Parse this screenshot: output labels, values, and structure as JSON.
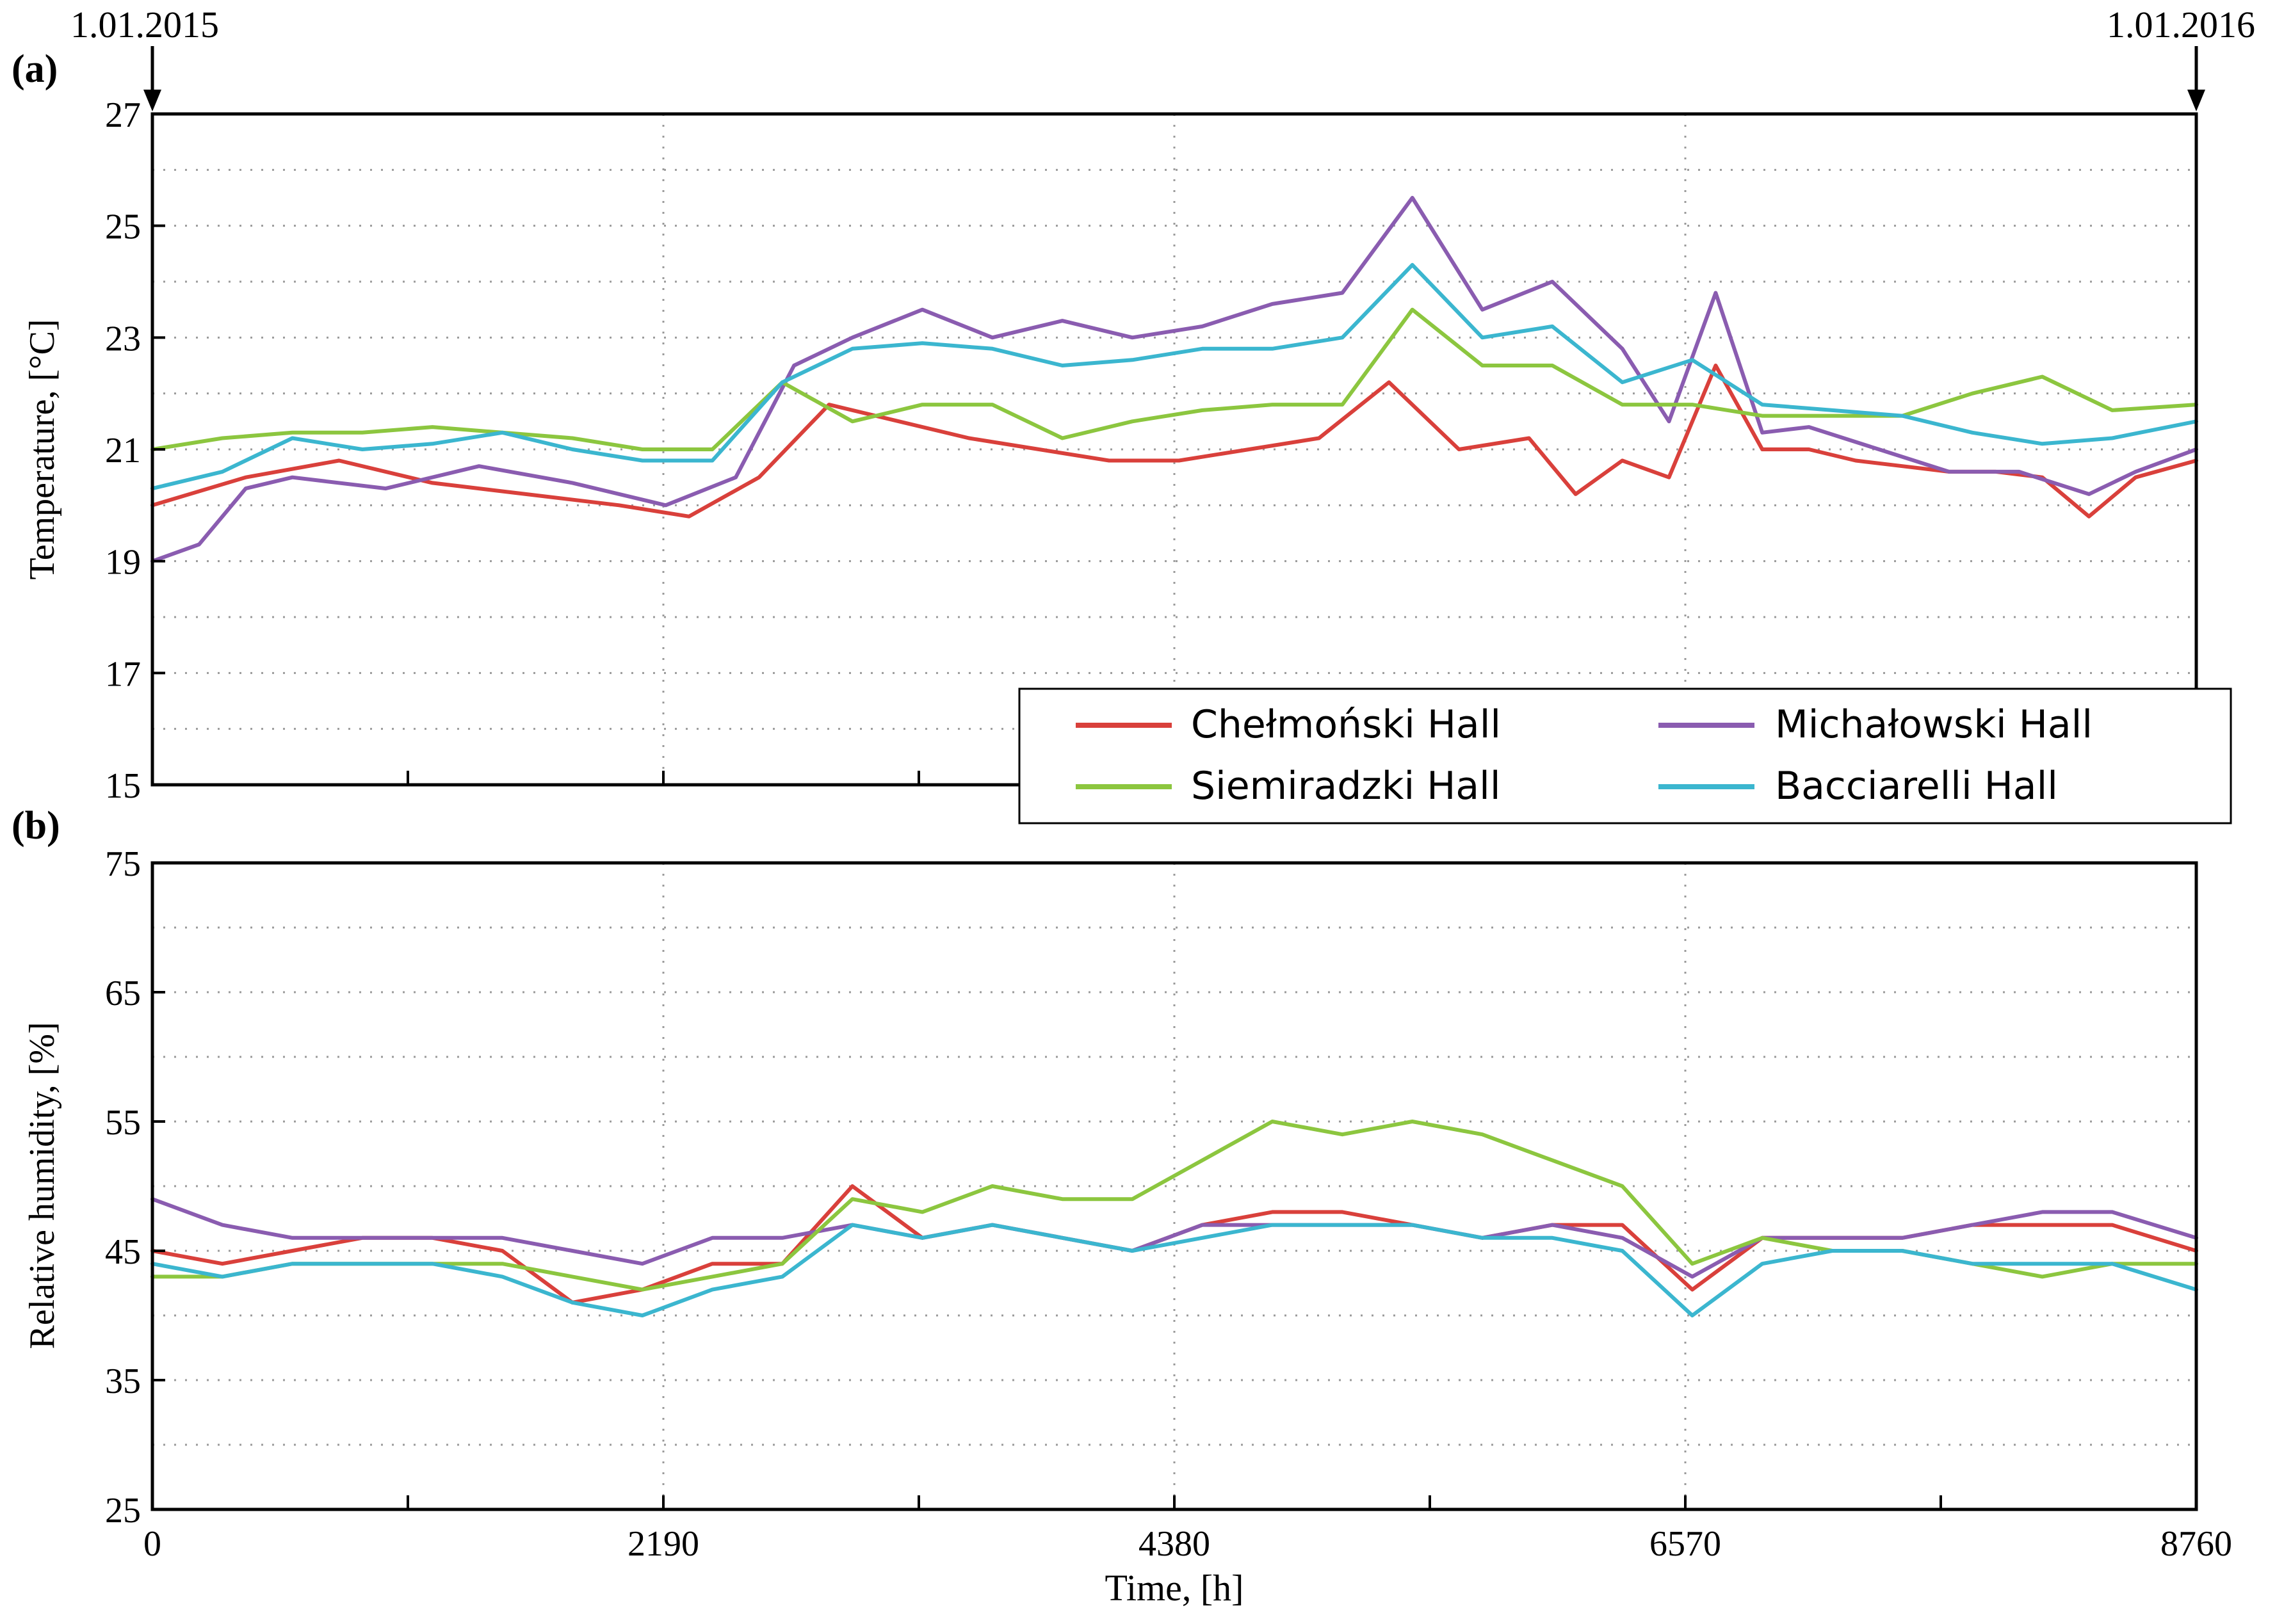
{
  "figure": {
    "date_start": "1.01.2015",
    "date_end": "1.01.2016"
  },
  "colors": {
    "Chełmoński Hall": "#d9403b",
    "Michałowski Hall": "#8a5cb0",
    "Siemiradzki Hall": "#8cc63f",
    "Bacciarelli Hall": "#3bb6cf"
  },
  "chart_data": [
    {
      "panel_label": "(a)",
      "type": "line",
      "title": "",
      "xlabel": "",
      "ylabel": "Temperature, [°C]",
      "xlim": [
        0,
        8760
      ],
      "ylim": [
        15,
        27
      ],
      "y_ticks": [
        15,
        17,
        19,
        21,
        23,
        25,
        27
      ],
      "x_ticks": [
        0,
        2190,
        4380,
        6570,
        8760
      ],
      "grid": true,
      "legend": "bottom-right",
      "series": [
        {
          "name": "Chełmoński Hall",
          "x": [
            0,
            400,
            800,
            1200,
            1600,
            2000,
            2300,
            2600,
            2900,
            3200,
            3500,
            3800,
            4100,
            4400,
            4700,
            5000,
            5300,
            5600,
            5900,
            6100,
            6300,
            6500,
            6700,
            6900,
            7100,
            7300,
            7500,
            7700,
            7900,
            8100,
            8300,
            8500,
            8760
          ],
          "values": [
            20.0,
            20.5,
            20.8,
            20.4,
            20.2,
            20.0,
            19.8,
            20.5,
            21.8,
            21.5,
            21.2,
            21.0,
            20.8,
            20.8,
            21.0,
            21.2,
            22.2,
            21.0,
            21.2,
            20.2,
            20.8,
            20.5,
            22.5,
            21.0,
            21.0,
            20.8,
            20.7,
            20.6,
            20.6,
            20.5,
            19.8,
            20.5,
            20.8
          ]
        },
        {
          "name": "Michałowski Hall",
          "x": [
            0,
            200,
            400,
            600,
            1000,
            1400,
            1800,
            2200,
            2500,
            2750,
            3000,
            3300,
            3600,
            3900,
            4200,
            4500,
            4800,
            5100,
            5400,
            5700,
            6000,
            6300,
            6500,
            6700,
            6900,
            7100,
            7400,
            7700,
            8000,
            8300,
            8500,
            8760
          ],
          "values": [
            19.0,
            19.3,
            20.3,
            20.5,
            20.3,
            20.7,
            20.4,
            20.0,
            20.5,
            22.5,
            23.0,
            23.5,
            23.0,
            23.3,
            23.0,
            23.2,
            23.6,
            23.8,
            25.5,
            23.5,
            24.0,
            22.8,
            21.5,
            23.8,
            21.3,
            21.4,
            21.0,
            20.6,
            20.6,
            20.2,
            20.6,
            21.0
          ]
        },
        {
          "name": "Siemiradzki Hall",
          "x": [
            0,
            300,
            600,
            900,
            1200,
            1500,
            1800,
            2100,
            2400,
            2700,
            3000,
            3300,
            3600,
            3900,
            4200,
            4500,
            4800,
            5100,
            5400,
            5700,
            6000,
            6300,
            6600,
            6900,
            7200,
            7500,
            7800,
            8100,
            8400,
            8760
          ],
          "values": [
            21.0,
            21.2,
            21.3,
            21.3,
            21.4,
            21.3,
            21.2,
            21.0,
            21.0,
            22.2,
            21.5,
            21.8,
            21.8,
            21.2,
            21.5,
            21.7,
            21.8,
            21.8,
            23.5,
            22.5,
            22.5,
            21.8,
            21.8,
            21.6,
            21.6,
            21.6,
            22.0,
            22.3,
            21.7,
            21.8
          ]
        },
        {
          "name": "Bacciarelli Hall",
          "x": [
            0,
            300,
            600,
            900,
            1200,
            1500,
            1800,
            2100,
            2400,
            2700,
            3000,
            3300,
            3600,
            3900,
            4200,
            4500,
            4800,
            5100,
            5400,
            5700,
            6000,
            6300,
            6600,
            6900,
            7200,
            7500,
            7800,
            8100,
            8400,
            8760
          ],
          "values": [
            20.3,
            20.6,
            21.2,
            21.0,
            21.1,
            21.3,
            21.0,
            20.8,
            20.8,
            22.2,
            22.8,
            22.9,
            22.8,
            22.5,
            22.6,
            22.8,
            22.8,
            23.0,
            24.3,
            23.0,
            23.2,
            22.2,
            22.6,
            21.8,
            21.7,
            21.6,
            21.3,
            21.1,
            21.2,
            21.5
          ]
        }
      ]
    },
    {
      "panel_label": "(b)",
      "type": "line",
      "title": "",
      "xlabel": "Time, [h]",
      "ylabel": "Relative humidity, [%]",
      "xlim": [
        0,
        8760
      ],
      "ylim": [
        25,
        75
      ],
      "y_ticks": [
        25,
        35,
        45,
        55,
        65,
        75
      ],
      "x_ticks": [
        0,
        2190,
        4380,
        6570,
        8760
      ],
      "grid": true,
      "legend": "",
      "series": [
        {
          "name": "Chełmoński Hall",
          "x": [
            0,
            300,
            600,
            900,
            1200,
            1500,
            1800,
            2100,
            2400,
            2700,
            3000,
            3300,
            3600,
            3900,
            4200,
            4500,
            4800,
            5100,
            5400,
            5700,
            6000,
            6300,
            6600,
            6900,
            7200,
            7500,
            7800,
            8100,
            8400,
            8760
          ],
          "values": [
            45,
            44,
            45,
            46,
            46,
            45,
            41,
            42,
            44,
            44,
            50,
            46,
            47,
            46,
            45,
            47,
            48,
            48,
            47,
            46,
            47,
            47,
            42,
            46,
            46,
            46,
            47,
            47,
            47,
            45
          ]
        },
        {
          "name": "Michałowski Hall",
          "x": [
            0,
            300,
            600,
            900,
            1200,
            1500,
            1800,
            2100,
            2400,
            2700,
            3000,
            3300,
            3600,
            3900,
            4200,
            4500,
            4800,
            5100,
            5400,
            5700,
            6000,
            6300,
            6600,
            6900,
            7200,
            7500,
            7800,
            8100,
            8400,
            8760
          ],
          "values": [
            49,
            47,
            46,
            46,
            46,
            46,
            45,
            44,
            46,
            46,
            47,
            46,
            47,
            46,
            45,
            47,
            47,
            47,
            47,
            46,
            47,
            46,
            43,
            46,
            46,
            46,
            47,
            48,
            48,
            46
          ]
        },
        {
          "name": "Siemiradzki Hall",
          "x": [
            0,
            300,
            600,
            900,
            1200,
            1500,
            1800,
            2100,
            2400,
            2700,
            3000,
            3300,
            3600,
            3900,
            4200,
            4500,
            4800,
            5100,
            5400,
            5700,
            6000,
            6300,
            6600,
            6900,
            7200,
            7500,
            7800,
            8100,
            8400,
            8760
          ],
          "values": [
            43,
            43,
            44,
            44,
            44,
            44,
            43,
            42,
            43,
            44,
            49,
            48,
            50,
            49,
            49,
            52,
            55,
            54,
            55,
            54,
            52,
            50,
            44,
            46,
            45,
            45,
            44,
            43,
            44,
            44
          ]
        },
        {
          "name": "Bacciarelli Hall",
          "x": [
            0,
            300,
            600,
            900,
            1200,
            1500,
            1800,
            2100,
            2400,
            2700,
            3000,
            3300,
            3600,
            3900,
            4200,
            4500,
            4800,
            5100,
            5400,
            5700,
            6000,
            6300,
            6600,
            6900,
            7200,
            7500,
            7800,
            8100,
            8400,
            8760
          ],
          "values": [
            44,
            43,
            44,
            44,
            44,
            43,
            41,
            40,
            42,
            43,
            47,
            46,
            47,
            46,
            45,
            46,
            47,
            47,
            47,
            46,
            46,
            45,
            40,
            44,
            45,
            45,
            44,
            44,
            44,
            42
          ]
        }
      ]
    }
  ],
  "annotations": {
    "x_tick_labels": [
      "0",
      "2190",
      "4380",
      "6570",
      "8760"
    ]
  }
}
